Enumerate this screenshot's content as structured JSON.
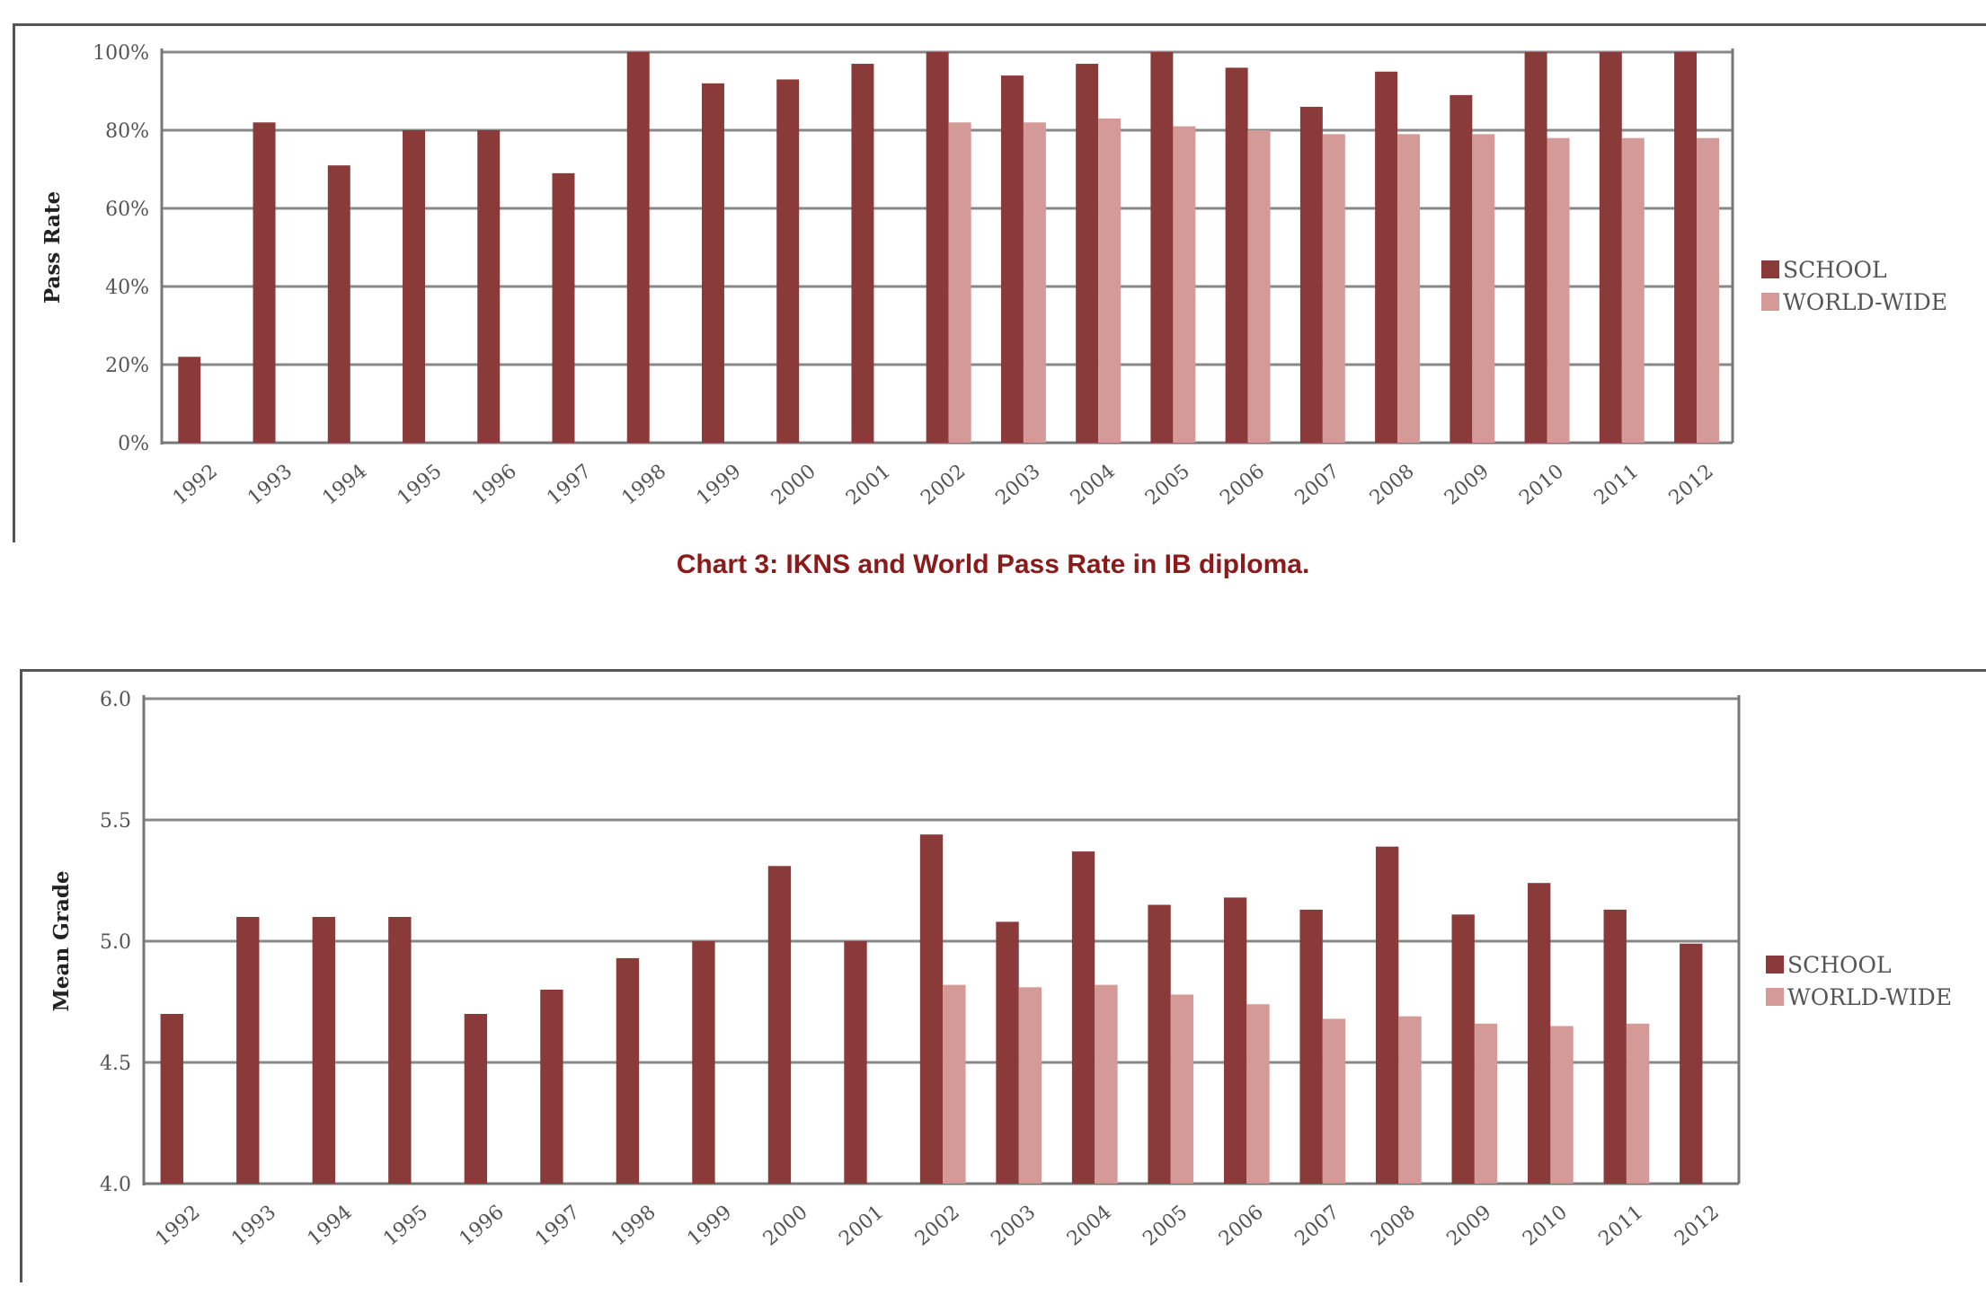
{
  "caption": "Chart 3:  IKNS and World Pass Rate in IB diploma.",
  "colors": {
    "school": "#8b3a3a",
    "world": "#d49a98",
    "grid": "#888888"
  },
  "chart_data": [
    {
      "type": "bar",
      "ylabel": "Pass Rate",
      "ylim": [
        0,
        100
      ],
      "yticks": [
        "0%",
        "20%",
        "40%",
        "60%",
        "80%",
        "100%"
      ],
      "ytick_values": [
        0,
        20,
        40,
        60,
        80,
        100
      ],
      "grid": true,
      "legend_position": "right",
      "categories": [
        "1992",
        "1993",
        "1994",
        "1995",
        "1996",
        "1997",
        "1998",
        "1999",
        "2000",
        "2001",
        "2002",
        "2003",
        "2004",
        "2005",
        "2006",
        "2007",
        "2008",
        "2009",
        "2010",
        "2011",
        "2012"
      ],
      "series": [
        {
          "name": "SCHOOL",
          "values": [
            22,
            82,
            71,
            80,
            80,
            69,
            100,
            92,
            93,
            97,
            100,
            94,
            97,
            100,
            96,
            86,
            95,
            89,
            100,
            100,
            100
          ]
        },
        {
          "name": "WORLD-WIDE",
          "values": [
            null,
            null,
            null,
            null,
            null,
            null,
            null,
            null,
            null,
            null,
            82,
            82,
            83,
            81,
            80,
            79,
            79,
            79,
            78,
            78,
            78
          ]
        }
      ]
    },
    {
      "type": "bar",
      "ylabel": "Mean Grade",
      "ylim": [
        4.0,
        6.0
      ],
      "yticks": [
        "4.0",
        "4.5",
        "5.0",
        "5.5",
        "6.0"
      ],
      "ytick_values": [
        4.0,
        4.5,
        5.0,
        5.5,
        6.0
      ],
      "grid": true,
      "legend_position": "right",
      "categories": [
        "1992",
        "1993",
        "1994",
        "1995",
        "1996",
        "1997",
        "1998",
        "1999",
        "2000",
        "2001",
        "2002",
        "2003",
        "2004",
        "2005",
        "2006",
        "2007",
        "2008",
        "2009",
        "2010",
        "2011",
        "2012"
      ],
      "series": [
        {
          "name": "SCHOOL",
          "values": [
            4.7,
            5.1,
            5.1,
            5.1,
            4.7,
            4.8,
            4.93,
            5.0,
            5.31,
            5.0,
            5.44,
            5.08,
            5.37,
            5.15,
            5.18,
            5.13,
            5.39,
            5.11,
            5.24,
            5.13,
            4.99
          ]
        },
        {
          "name": "WORLD-WIDE",
          "values": [
            null,
            null,
            null,
            null,
            null,
            null,
            null,
            null,
            null,
            null,
            4.82,
            4.81,
            4.82,
            4.78,
            4.74,
            4.68,
            4.69,
            4.66,
            4.65,
            4.66,
            null
          ]
        }
      ]
    }
  ]
}
